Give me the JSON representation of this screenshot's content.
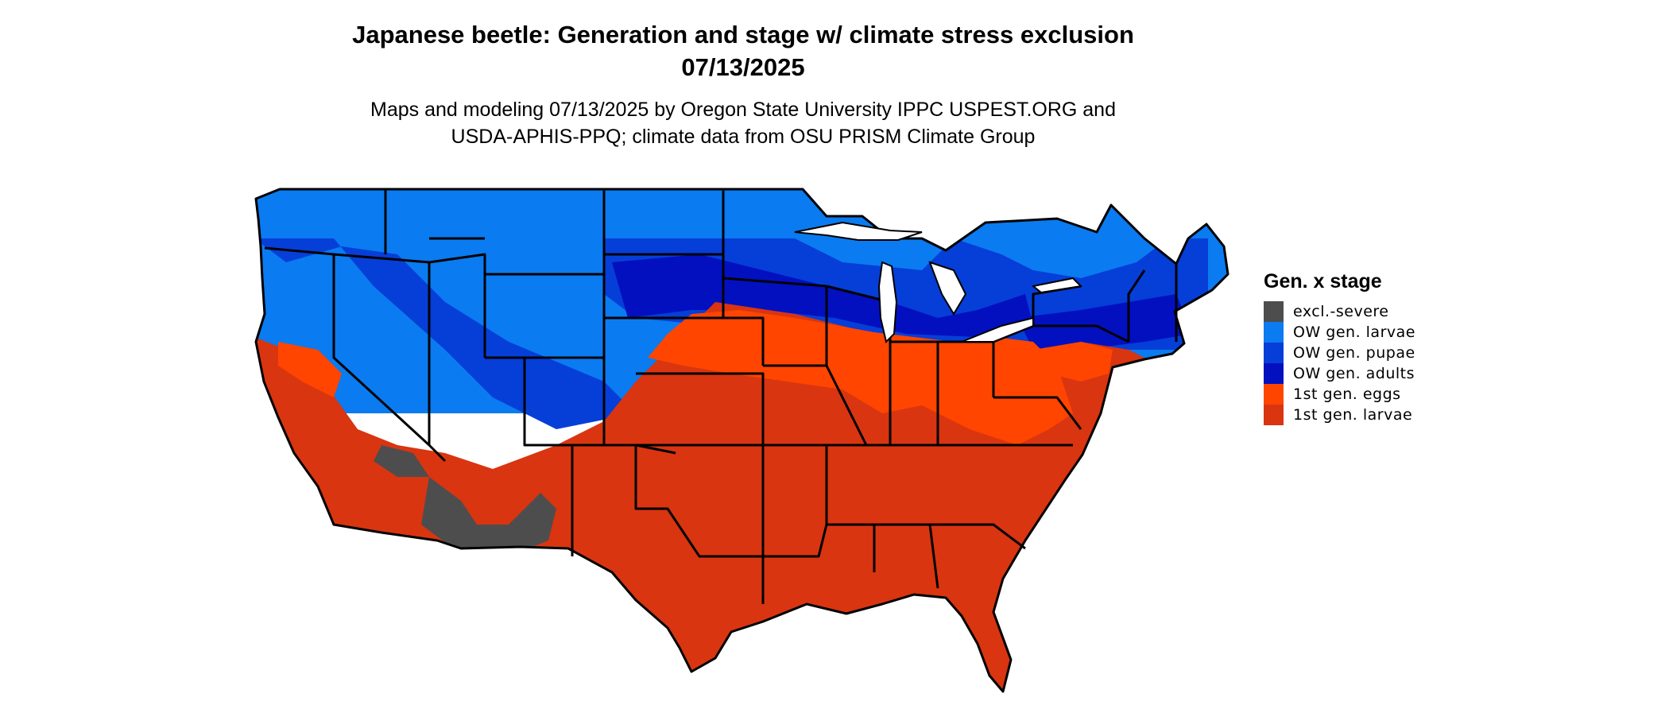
{
  "map": {
    "title": "Japanese beetle: Generation and stage w/ climate stress exclusion",
    "date": "07/13/2025",
    "subtitle_line1": "Maps and modeling 07/13/2025 by Oregon State University IPPC USPEST.ORG and",
    "subtitle_line2": "USDA-APHIS-PPQ; climate data from OSU PRISM Climate Group"
  },
  "legend": {
    "title": "Gen. x stage",
    "items": [
      {
        "label": "excl.-severe",
        "color": "#4d4d4d"
      },
      {
        "label": "OW gen. larvae",
        "color": "#0a7bf0"
      },
      {
        "label": "OW gen. pupae",
        "color": "#063ed8"
      },
      {
        "label": "OW gen. adults",
        "color": "#0310c0"
      },
      {
        "label": "1st gen. eggs",
        "color": "#ff4500"
      },
      {
        "label": "1st gen. larvae",
        "color": "#d93510"
      }
    ]
  }
}
